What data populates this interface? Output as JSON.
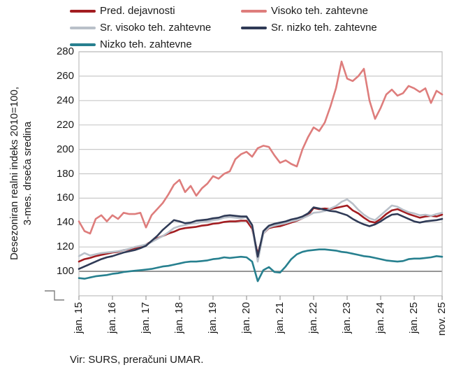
{
  "legend": {
    "items": [
      {
        "label": "Pred. dejavnosti",
        "color": "#a21d21"
      },
      {
        "label": "Visoko teh. zahtevne",
        "color": "#de7d7c"
      },
      {
        "label": "Sr. visoko teh. zahtevne",
        "color": "#b9c0c9"
      },
      {
        "label": "Sr. nizko teh. zahtevne",
        "color": "#2f3a56"
      },
      {
        "label": "Nizko teh. zahtevne",
        "color": "#27808f"
      }
    ]
  },
  "y_axis": {
    "title_line1": "Desezoniran realni indeks 2010=100,",
    "title_line2": "3-mes. drseča sredina",
    "ticks": [
      280,
      260,
      240,
      220,
      200,
      180,
      160,
      140,
      120,
      100
    ],
    "axis_break": true
  },
  "x_axis": {
    "ticks": [
      {
        "label": "jan. 15",
        "index": 0
      },
      {
        "label": "jan. 16",
        "index": 6
      },
      {
        "label": "jan. 17",
        "index": 12
      },
      {
        "label": "jan. 18",
        "index": 18
      },
      {
        "label": "jan. 19",
        "index": 24
      },
      {
        "label": "jan. 20",
        "index": 30
      },
      {
        "label": "jan. 21",
        "index": 36
      },
      {
        "label": "jan. 22",
        "index": 42
      },
      {
        "label": "jan. 23",
        "index": 48
      },
      {
        "label": "jan. 24",
        "index": 54
      },
      {
        "label": "jan. 25",
        "index": 60
      },
      {
        "label": "nov. 25",
        "index": 65
      }
    ]
  },
  "source": "Vir: SURS, preračuni UMAR.",
  "colors": {
    "grid": "#c9c9c9",
    "border": "#bfbfbf",
    "reference_line": "#7f7f7f",
    "tick_mark": "#9b9b9b"
  },
  "chart_data": {
    "type": "line",
    "title": "",
    "xlabel": "",
    "ylabel": "Desezoniran realni indeks 2010=100, 3-mes. drseča sredina",
    "ylim": [
      80,
      280
    ],
    "grid": true,
    "reference_line_y": 100,
    "legend_position": "top",
    "x": [
      "jan. 15",
      "mar. 15",
      "maj 15",
      "jul. 15",
      "sep. 15",
      "nov. 15",
      "jan. 16",
      "mar. 16",
      "maj 16",
      "jul. 16",
      "sep. 16",
      "nov. 16",
      "jan. 17",
      "mar. 17",
      "maj 17",
      "jul. 17",
      "sep. 17",
      "nov. 17",
      "jan. 18",
      "mar. 18",
      "maj 18",
      "jul. 18",
      "sep. 18",
      "nov. 18",
      "jan. 19",
      "mar. 19",
      "maj 19",
      "jul. 19",
      "sep. 19",
      "nov. 19",
      "jan. 20",
      "mar. 20",
      "maj 20",
      "jul. 20",
      "sep. 20",
      "nov. 20",
      "jan. 21",
      "mar. 21",
      "maj 21",
      "jul. 21",
      "sep. 21",
      "nov. 21",
      "jan. 22",
      "mar. 22",
      "maj 22",
      "jul. 22",
      "sep. 22",
      "nov. 22",
      "jan. 23",
      "mar. 23",
      "maj 23",
      "jul. 23",
      "sep. 23",
      "nov. 23",
      "jan. 24",
      "mar. 24",
      "maj 24",
      "jul. 24",
      "sep. 24",
      "nov. 24",
      "jan. 25",
      "mar. 25",
      "maj 25",
      "jul. 25",
      "sep. 25",
      "nov. 25"
    ],
    "series": [
      {
        "name": "Pred. dejavnosti",
        "color": "#a21d21",
        "values": [
          108,
          110,
          111,
          112.5,
          113.5,
          114.5,
          115.5,
          116,
          117.5,
          118,
          119,
          120.5,
          122,
          124.5,
          127,
          129,
          131,
          132.5,
          134.5,
          135.5,
          136,
          136.5,
          137.5,
          138,
          139,
          139.5,
          140.5,
          141,
          141,
          141.5,
          141.5,
          135,
          114,
          131,
          135.5,
          136.5,
          137,
          138.5,
          140,
          141.5,
          143.5,
          146,
          152,
          151,
          151.5,
          151,
          152,
          153,
          154,
          150,
          147.5,
          144,
          141,
          140,
          143,
          147,
          150,
          151,
          149,
          147,
          145.5,
          144,
          145,
          145.5,
          145,
          146.5
        ]
      },
      {
        "name": "Visoko teh. zahtevne",
        "color": "#de7d7c",
        "values": [
          141,
          133,
          131,
          143,
          146,
          141,
          146,
          143,
          148,
          147,
          147,
          148,
          136,
          146,
          151,
          156,
          163,
          171,
          175,
          165,
          170,
          162,
          168,
          172,
          178,
          176,
          180,
          182,
          192,
          196,
          198,
          194,
          201,
          203,
          202,
          195,
          189,
          191,
          188,
          186,
          200,
          210,
          218,
          215,
          222,
          235,
          250,
          272,
          258,
          256,
          260,
          266,
          240,
          225,
          234,
          245,
          249,
          244,
          246,
          252,
          250,
          247,
          250,
          238,
          248,
          245
        ]
      },
      {
        "name": "Sr. visoko teh. zahtevne",
        "color": "#b9c0c9",
        "values": [
          112.5,
          115,
          113,
          114,
          115,
          115.5,
          116,
          116.5,
          117.5,
          118.5,
          120,
          121,
          122,
          124,
          126.5,
          129,
          132,
          135.5,
          137,
          138,
          139,
          139.5,
          140.5,
          141,
          142,
          142.5,
          144,
          144.5,
          144,
          143.5,
          144.5,
          137,
          108,
          131,
          136,
          137.5,
          138.5,
          139.5,
          141,
          142,
          143.5,
          145.5,
          148,
          148.5,
          149.5,
          151.5,
          153.5,
          157,
          159,
          155.5,
          150.5,
          146.5,
          143.5,
          142,
          146,
          150,
          154,
          153,
          150.5,
          148.5,
          147.5,
          146,
          146.5,
          145.5,
          147,
          148
        ]
      },
      {
        "name": "Sr. nizko teh. zahtevne",
        "color": "#2f3a56",
        "values": [
          102,
          104,
          106,
          108,
          110,
          111.5,
          112.5,
          114,
          115.5,
          116.5,
          117.5,
          119,
          121,
          125,
          129,
          134,
          138,
          142,
          141,
          139.5,
          140,
          141.5,
          142,
          142.5,
          143.5,
          144,
          145.5,
          146,
          145.5,
          145,
          145,
          138,
          112,
          133,
          137.5,
          139,
          140,
          141,
          142.5,
          143.5,
          145,
          147.5,
          152.5,
          151.5,
          150.5,
          149.5,
          149,
          147.5,
          146,
          143,
          140.5,
          138.5,
          137,
          138.5,
          141,
          144,
          146.5,
          147,
          145,
          143,
          141,
          140,
          141,
          141.5,
          142,
          143
        ]
      },
      {
        "name": "Nizko teh. zahtevne",
        "color": "#27808f",
        "values": [
          94.5,
          94,
          95,
          96,
          96.5,
          97,
          98,
          98.5,
          99.5,
          100,
          100.5,
          101,
          101.5,
          102,
          103,
          104,
          104.5,
          105.5,
          106.5,
          107.5,
          108,
          108,
          108.5,
          109,
          110,
          110.5,
          111.5,
          111,
          111.5,
          112,
          111.5,
          108,
          92,
          101,
          103.5,
          99.5,
          99,
          104,
          110,
          114,
          116,
          117,
          117.5,
          118,
          118,
          117.5,
          117,
          116,
          115.5,
          114.5,
          113.5,
          112.5,
          112,
          111,
          110,
          109,
          108.5,
          108,
          108.5,
          110,
          110.5,
          110.5,
          111,
          111.5,
          112.5,
          112
        ]
      }
    ]
  }
}
